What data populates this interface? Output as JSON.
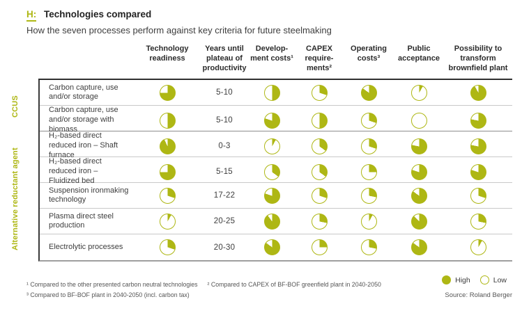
{
  "accent": "#aeb714",
  "chart_data": {
    "type": "table",
    "title_tag": "H:",
    "title": "Technologies compared",
    "subtitle": "How the seven processes perform against key criteria for future steelmaking",
    "columns": [
      "Technology readiness",
      "Years until plateau of productivity",
      "Develop-ment costs¹",
      "CAPEX require-ments²",
      "Operating costs³",
      "Public acceptance",
      "Possibility to transform brownfield plant"
    ],
    "pie_columns": [
      "Technology readiness",
      "Development costs",
      "CAPEX requirements",
      "Operating costs",
      "Public acceptance",
      "Possibility to transform brownfield plant"
    ],
    "pie_scale": "fill fraction 0-1, filled clockwise from 12 o'clock; full = High, empty = Low",
    "groups": [
      {
        "label": "CCUS",
        "row_indexes": [
          0,
          1
        ]
      },
      {
        "label": "Alternative reductant agent",
        "row_indexes": [
          2,
          3,
          4,
          5,
          6
        ]
      }
    ],
    "rows": [
      {
        "group": "CCUS",
        "label": "Carbon capture, use and/or storage",
        "years": "5-10",
        "pies": [
          0.75,
          0.5,
          0.3,
          0.85,
          0.08,
          0.92
        ]
      },
      {
        "group": "CCUS",
        "label": "Carbon capture, use and/or storage with biomass",
        "years": "5-10",
        "pies": [
          0.5,
          0.8,
          0.5,
          0.3,
          0.0,
          0.78
        ]
      },
      {
        "group": "Alternative reductant agent",
        "label": "H₂-based direct reduced iron – Shaft furnace",
        "years": "0-3",
        "pies": [
          0.93,
          0.08,
          0.35,
          0.3,
          0.78,
          0.78
        ]
      },
      {
        "group": "Alternative reductant agent",
        "label": "H₂-based direct reduced iron – Fluidized bed",
        "years": "5-15",
        "pies": [
          0.75,
          0.35,
          0.35,
          0.25,
          0.8,
          0.8
        ]
      },
      {
        "group": "Alternative reductant agent",
        "label": "Suspension ironmaking technology",
        "years": "17-22",
        "pies": [
          0.3,
          0.8,
          0.3,
          0.28,
          0.85,
          0.3
        ]
      },
      {
        "group": "Alternative reductant agent",
        "label": "Plasma direct steel production",
        "years": "20-25",
        "pies": [
          0.08,
          0.9,
          0.28,
          0.08,
          0.88,
          0.28
        ]
      },
      {
        "group": "Alternative reductant agent",
        "label": "Electrolytic processes",
        "years": "20-30",
        "pies": [
          0.3,
          0.85,
          0.25,
          0.28,
          0.85,
          0.08
        ]
      }
    ],
    "legend": {
      "high": "High",
      "low": "Low"
    },
    "footnotes": [
      "¹ Compared to the other presented carbon neutral technologies",
      "² Compared to CAPEX of BF-BOF greenfield plant in 2040-2050",
      "³ Compared to BF-BOF plant in 2040-2050 (incl. carbon tax)"
    ],
    "source": "Source: Roland Berger"
  }
}
